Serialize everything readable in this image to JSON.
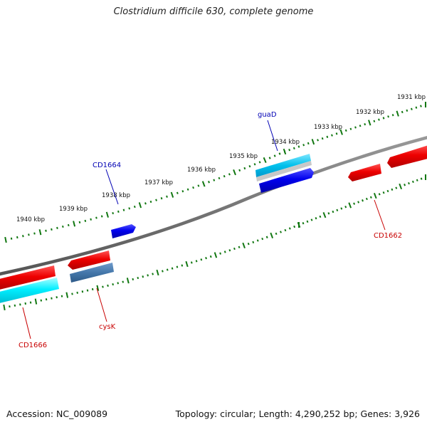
{
  "title": "Clostridium difficile 630, complete genome",
  "footer": {
    "accession": "Accession: NC_009089",
    "summary": "Topology: circular; Length: 4,290,252 bp; Genes: 3,926"
  },
  "scale_labels": [
    "1931 kbp",
    "1932 kbp",
    "1933 kbp",
    "1934 kbp",
    "1935 kbp",
    "1936 kbp",
    "1937 kbp",
    "1938 kbp",
    "1939 kbp",
    "1940 kbp"
  ],
  "gene_labels": [
    {
      "name": "guaD",
      "color": "#0000b4"
    },
    {
      "name": "CD1664",
      "color": "#0000b4"
    },
    {
      "name": "CD1662",
      "color": "#c80000"
    },
    {
      "name": "cysK",
      "color": "#c80000"
    },
    {
      "name": "CD1666",
      "color": "#c80000"
    }
  ],
  "colors": {
    "forward_gene": "#0000ee",
    "reverse_gene": "#ee0000",
    "rna": "#00e6f0",
    "pseudo": "#4477aa",
    "ruler": "#117711",
    "backbone": "#777777"
  }
}
